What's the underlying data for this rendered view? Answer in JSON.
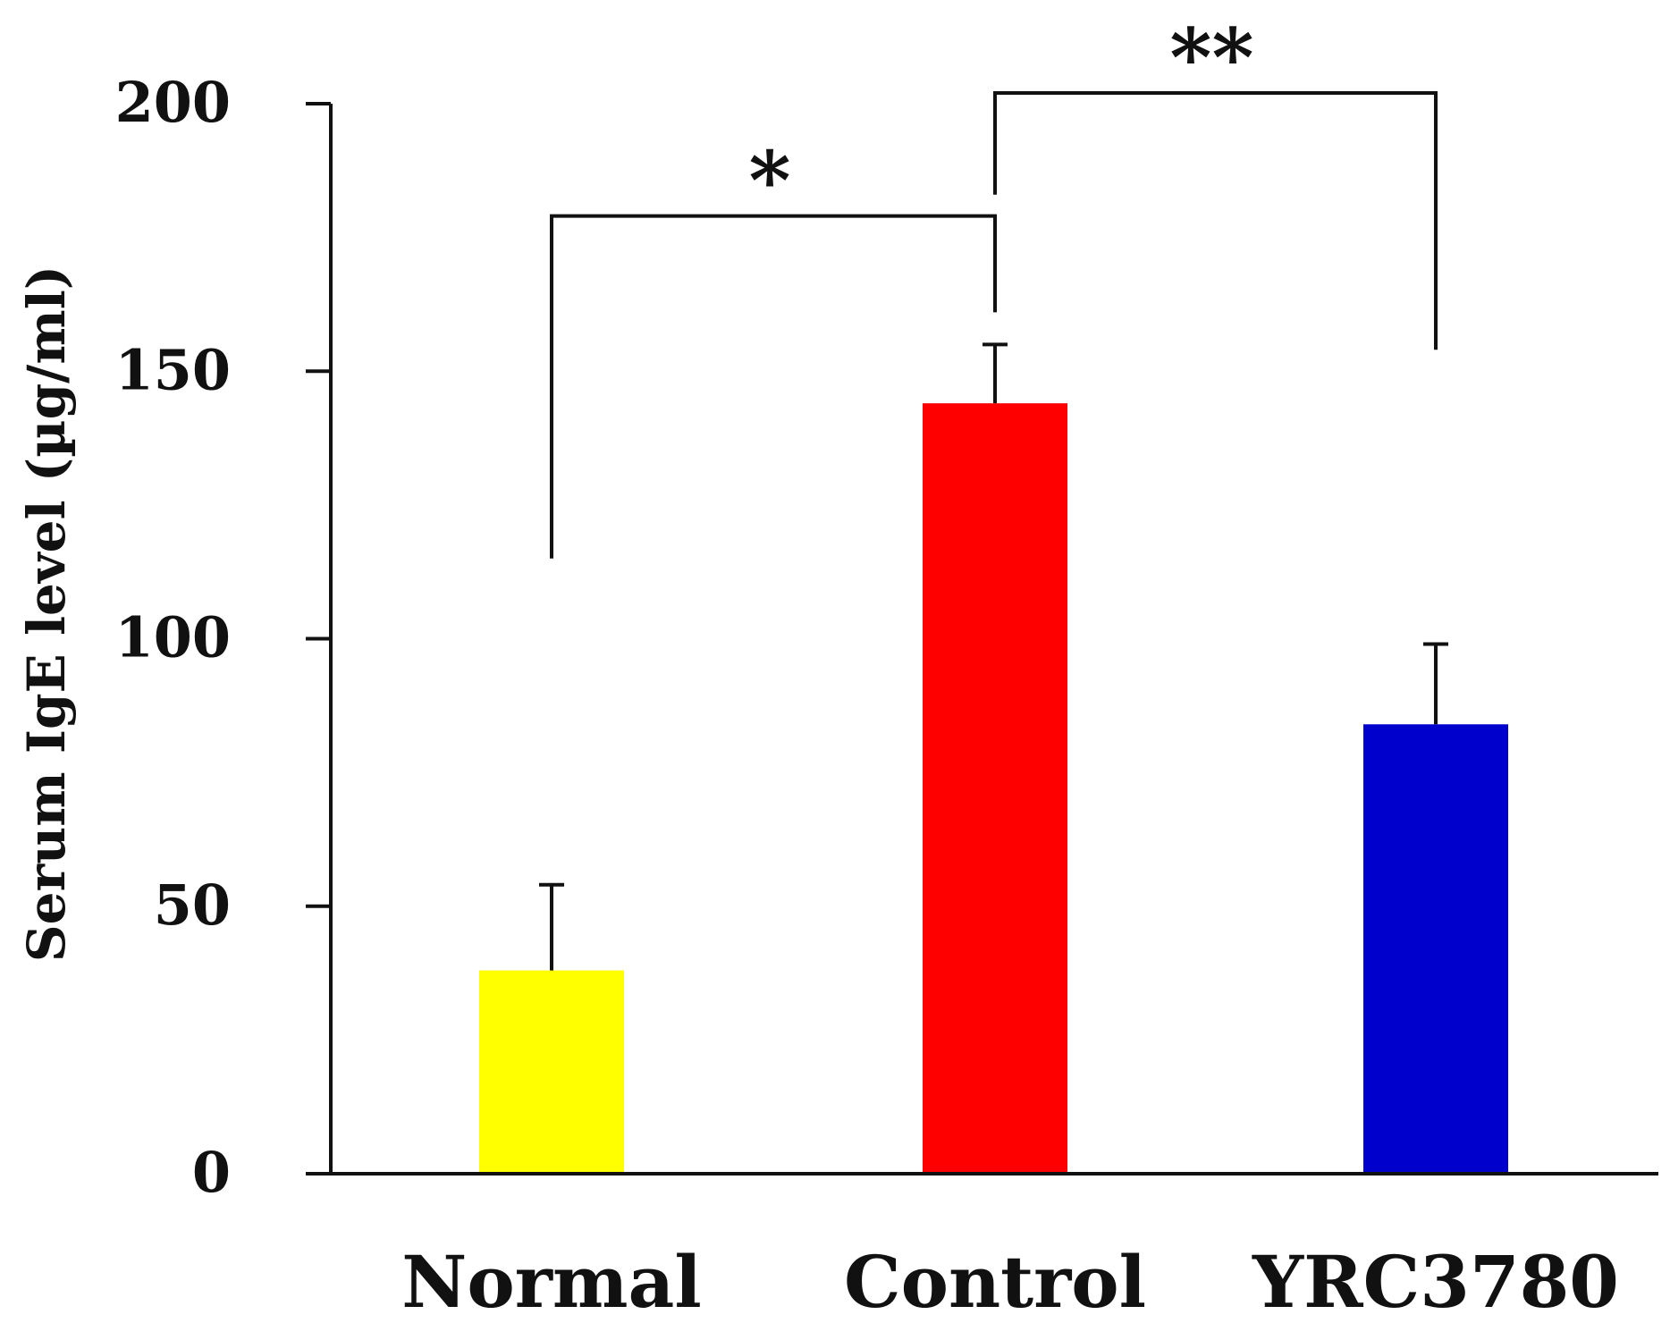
{
  "chart_data": {
    "type": "bar",
    "title": "",
    "xlabel": "",
    "ylabel": "Serum IgE level (µg/ml)",
    "categories": [
      "Normal",
      "Control",
      "YRC3780"
    ],
    "values": [
      38,
      144,
      84
    ],
    "errors": [
      16,
      11,
      15
    ],
    "colors": [
      "#ffff00",
      "#ff0000",
      "#0000cc"
    ],
    "ylim": [
      0,
      200
    ],
    "yticks": [
      0,
      50,
      100,
      150,
      200
    ],
    "yticklabels": [
      "0",
      "50",
      "100",
      "150",
      "200"
    ],
    "grid": false,
    "legend": "none",
    "significance": [
      {
        "from": 0,
        "to": 1,
        "label": "*",
        "y_bracket": 179,
        "y_left_end": 115,
        "y_right_end": 161
      },
      {
        "from": 1,
        "to": 2,
        "label": "**",
        "y_bracket": 202,
        "y_left_end": 183,
        "y_right_end": 154
      }
    ]
  }
}
